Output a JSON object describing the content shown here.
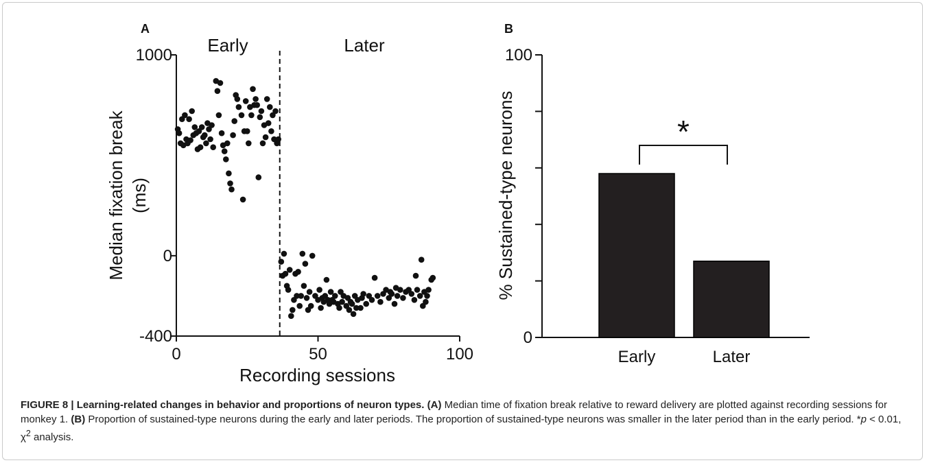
{
  "colors": {
    "marker": "#111111",
    "bar_fill": "#231f20",
    "frame": "#c9c9c9"
  },
  "chart_data": [
    {
      "panel": "A",
      "type": "scatter",
      "xlabel": "Recording sessions",
      "ylabel_lines": [
        "Median fixation break",
        "(ms)"
      ],
      "xlim": [
        0,
        100
      ],
      "ylim": [
        -400,
        1000
      ],
      "xticks": [
        "0",
        "50",
        "100"
      ],
      "yticks": [
        "1000",
        "0",
        "-400"
      ],
      "region_labels": [
        "Early",
        "Later"
      ],
      "divider_x": 36.5,
      "points": [
        [
          0.5,
          630
        ],
        [
          1,
          610
        ],
        [
          1.5,
          560
        ],
        [
          2,
          680
        ],
        [
          2.5,
          550
        ],
        [
          3,
          700
        ],
        [
          3.5,
          580
        ],
        [
          4,
          560
        ],
        [
          4.5,
          680
        ],
        [
          5,
          575
        ],
        [
          5.5,
          720
        ],
        [
          6,
          600
        ],
        [
          6.5,
          640
        ],
        [
          7,
          610
        ],
        [
          7.5,
          530
        ],
        [
          8,
          620
        ],
        [
          8.5,
          540
        ],
        [
          9,
          640
        ],
        [
          9.5,
          590
        ],
        [
          10,
          600
        ],
        [
          10.5,
          560
        ],
        [
          11,
          660
        ],
        [
          11.5,
          630
        ],
        [
          12,
          580
        ],
        [
          12.5,
          650
        ],
        [
          13,
          540
        ],
        [
          14,
          870
        ],
        [
          14.5,
          820
        ],
        [
          15,
          700
        ],
        [
          15.5,
          860
        ],
        [
          16,
          610
        ],
        [
          16.5,
          550
        ],
        [
          17,
          520
        ],
        [
          17.5,
          480
        ],
        [
          18,
          560
        ],
        [
          18.5,
          410
        ],
        [
          19,
          360
        ],
        [
          19.5,
          330
        ],
        [
          20,
          600
        ],
        [
          20.5,
          670
        ],
        [
          21,
          800
        ],
        [
          21.5,
          780
        ],
        [
          22,
          740
        ],
        [
          23,
          700
        ],
        [
          23.5,
          280
        ],
        [
          24,
          620
        ],
        [
          24.5,
          770
        ],
        [
          25,
          620
        ],
        [
          25.5,
          560
        ],
        [
          26,
          740
        ],
        [
          26.5,
          700
        ],
        [
          27,
          830
        ],
        [
          27.5,
          750
        ],
        [
          28,
          780
        ],
        [
          28.5,
          750
        ],
        [
          29,
          390
        ],
        [
          29.5,
          690
        ],
        [
          30,
          720
        ],
        [
          30.5,
          560
        ],
        [
          31,
          650
        ],
        [
          31.5,
          590
        ],
        [
          32,
          780
        ],
        [
          32.5,
          660
        ],
        [
          33,
          740
        ],
        [
          33.5,
          620
        ],
        [
          34,
          700
        ],
        [
          34.5,
          580
        ],
        [
          35,
          720
        ],
        [
          35.5,
          560
        ],
        [
          36,
          580
        ],
        [
          37,
          -30
        ],
        [
          37.5,
          -100
        ],
        [
          38,
          10
        ],
        [
          38.5,
          -90
        ],
        [
          39,
          -150
        ],
        [
          39.5,
          -170
        ],
        [
          40,
          -70
        ],
        [
          40.5,
          -300
        ],
        [
          41,
          -270
        ],
        [
          41.5,
          -220
        ],
        [
          42,
          -90
        ],
        [
          42.5,
          -200
        ],
        [
          43,
          -80
        ],
        [
          43.5,
          -250
        ],
        [
          44,
          -200
        ],
        [
          44.5,
          10
        ],
        [
          45,
          -150
        ],
        [
          45.5,
          -40
        ],
        [
          46,
          -210
        ],
        [
          46.5,
          -270
        ],
        [
          47,
          -180
        ],
        [
          47.5,
          -250
        ],
        [
          48,
          0
        ],
        [
          49,
          -200
        ],
        [
          50,
          -220
        ],
        [
          50.5,
          -170
        ],
        [
          51,
          -260
        ],
        [
          51.5,
          -210
        ],
        [
          52,
          -230
        ],
        [
          52.5,
          -200
        ],
        [
          53,
          -120
        ],
        [
          53.5,
          -220
        ],
        [
          54,
          -240
        ],
        [
          54.5,
          -180
        ],
        [
          55,
          -220
        ],
        [
          55.5,
          -230
        ],
        [
          56,
          -200
        ],
        [
          57,
          -240
        ],
        [
          57.5,
          -260
        ],
        [
          58,
          -180
        ],
        [
          58.5,
          -230
        ],
        [
          59,
          -200
        ],
        [
          60,
          -250
        ],
        [
          60.5,
          -210
        ],
        [
          61,
          -270
        ],
        [
          61.5,
          -230
        ],
        [
          62,
          -240
        ],
        [
          62.5,
          -290
        ],
        [
          63,
          -200
        ],
        [
          63.5,
          -260
        ],
        [
          64,
          -220
        ],
        [
          65,
          -260
        ],
        [
          65.5,
          -210
        ],
        [
          66,
          -190
        ],
        [
          67,
          -240
        ],
        [
          68,
          -200
        ],
        [
          69,
          -220
        ],
        [
          70,
          -110
        ],
        [
          71,
          -200
        ],
        [
          72,
          -230
        ],
        [
          73,
          -190
        ],
        [
          74,
          -170
        ],
        [
          75,
          -210
        ],
        [
          75.5,
          -180
        ],
        [
          76,
          -190
        ],
        [
          77,
          -240
        ],
        [
          77.5,
          -160
        ],
        [
          78,
          -200
        ],
        [
          79,
          -170
        ],
        [
          80,
          -210
        ],
        [
          81,
          -180
        ],
        [
          82,
          -170
        ],
        [
          83,
          -190
        ],
        [
          84,
          -220
        ],
        [
          84.5,
          -100
        ],
        [
          85,
          -170
        ],
        [
          86,
          -200
        ],
        [
          86.5,
          -20
        ],
        [
          87,
          -250
        ],
        [
          87.5,
          -180
        ],
        [
          88,
          -230
        ],
        [
          88.5,
          -200
        ],
        [
          89,
          -170
        ],
        [
          90,
          -120
        ],
        [
          90.5,
          -110
        ]
      ]
    },
    {
      "panel": "B",
      "type": "bar",
      "ylabel": "% Sustained-type neurons",
      "ylim": [
        0,
        100
      ],
      "yticks": [
        "100",
        "0"
      ],
      "yticks_minor": [
        20,
        40,
        60,
        80
      ],
      "categories": [
        "Early",
        "Later"
      ],
      "values": [
        58,
        27
      ],
      "annotation": "*"
    }
  ],
  "caption": {
    "title": "FIGURE 8 | Learning-related changes in behavior and proportions of neuron types.",
    "a_label": "(A)",
    "a_text": " Median time of fixation break relative to reward delivery are plotted against recording sessions for monkey 1. ",
    "b_label": "(B)",
    "b_text": " Proportion of sustained-type neurons during the early and later periods. The proportion of sustained-type neurons was smaller in the later period than in the early period. *",
    "p_symbol": "p",
    "stat_text": " < 0.01, χ",
    "sup": "2",
    "end_text": " analysis."
  }
}
